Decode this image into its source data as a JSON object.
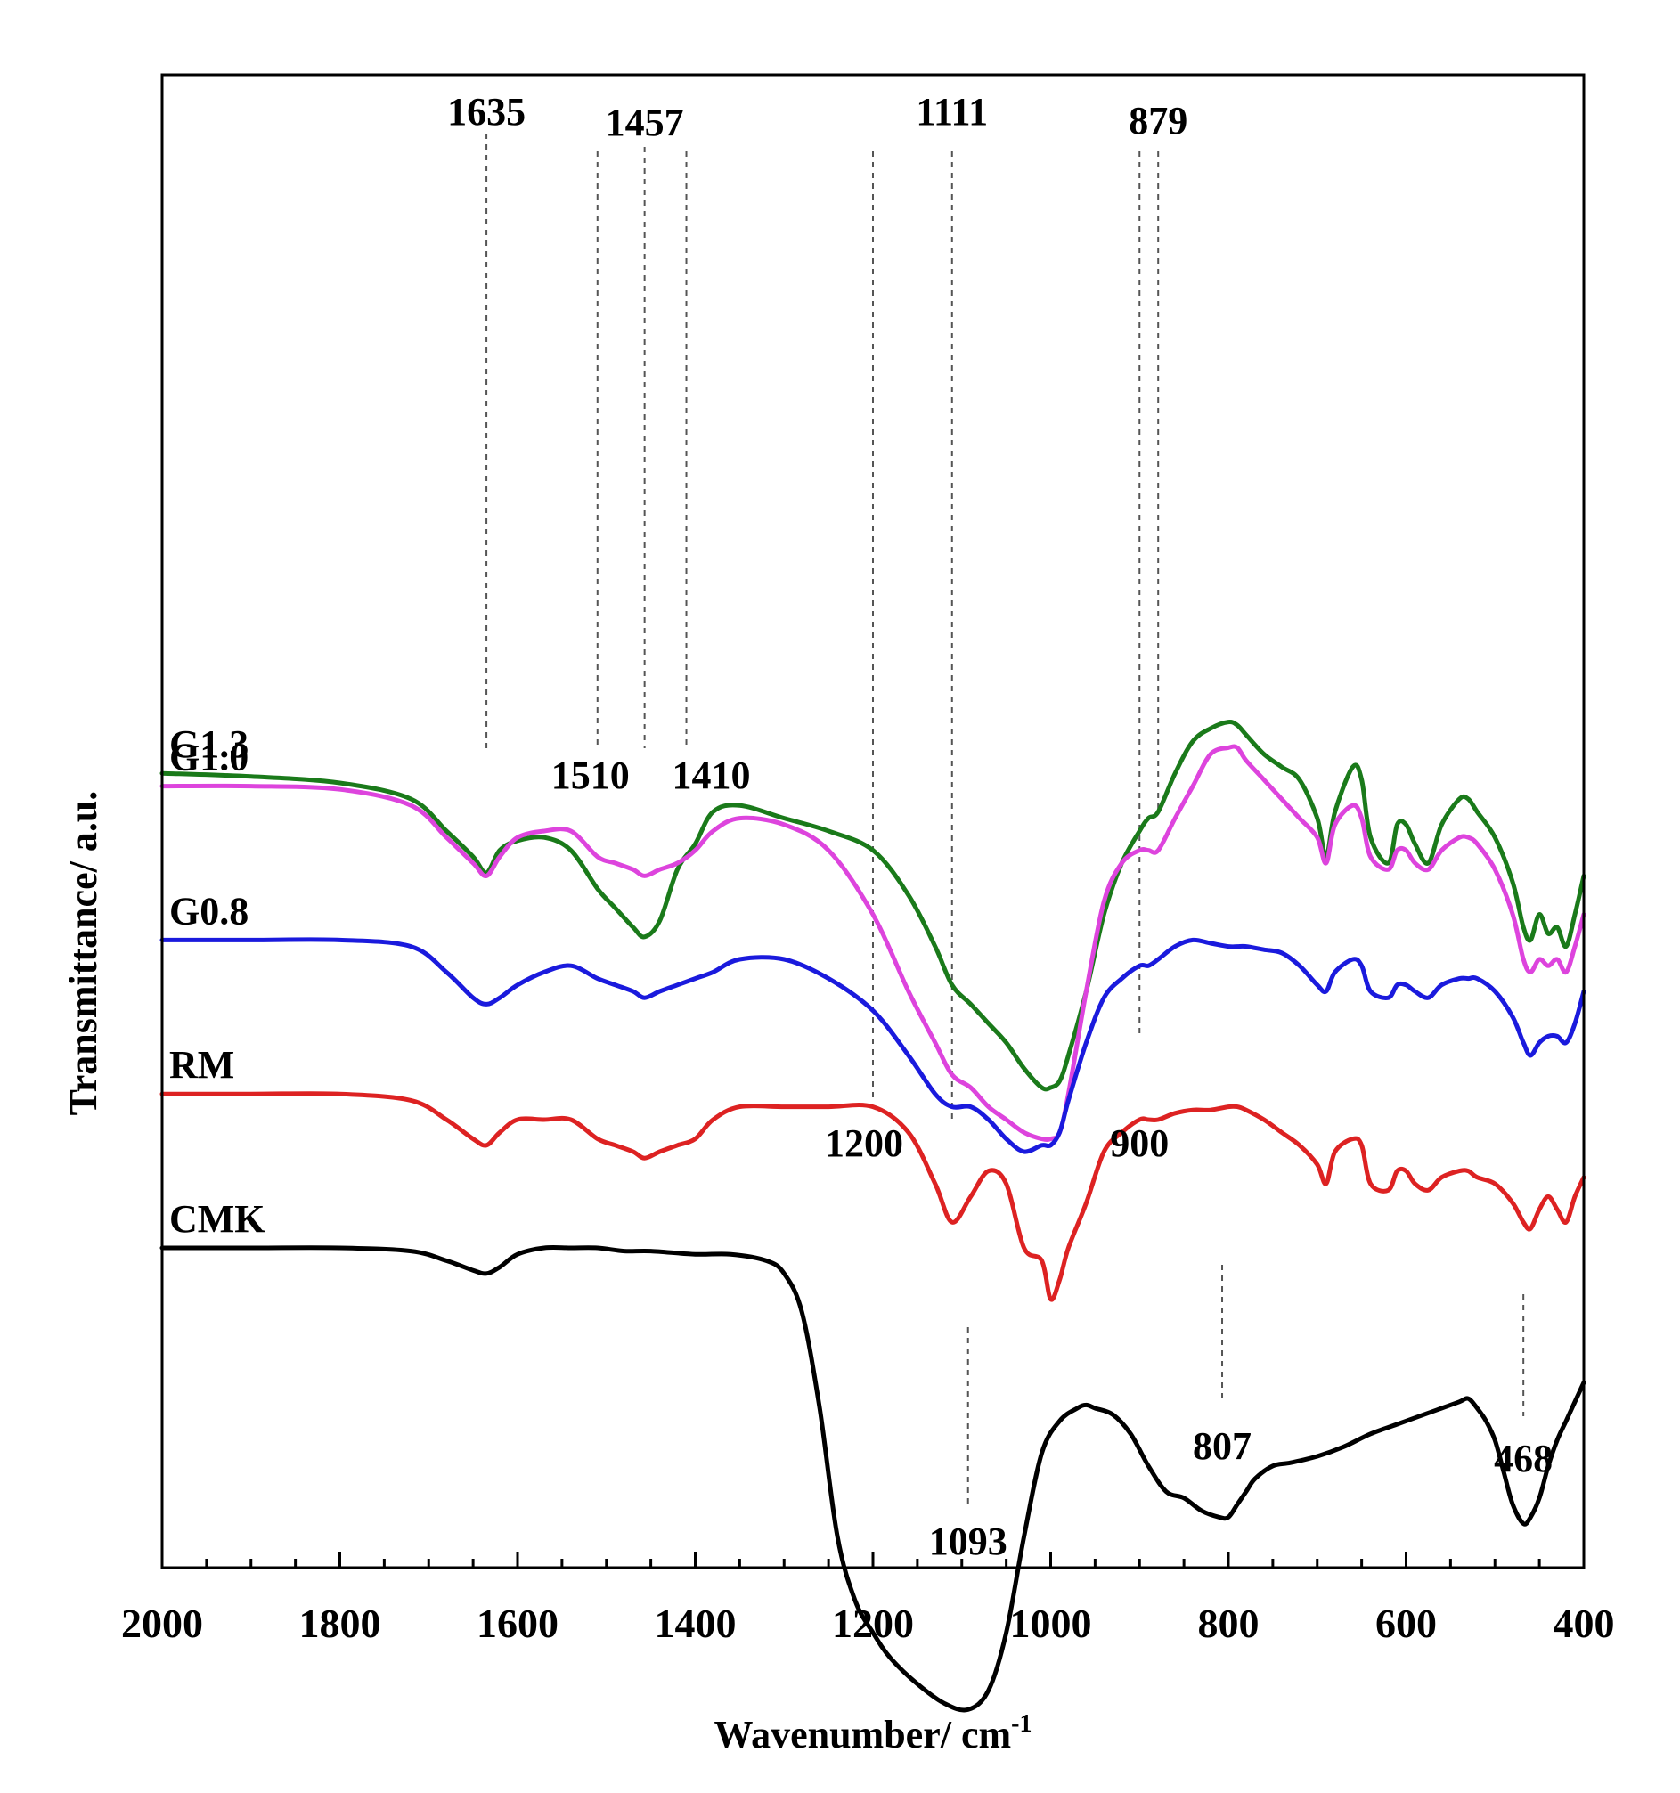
{
  "chart_data": {
    "type": "line",
    "title": "",
    "xlabel": "Wavenumber/ cm",
    "xlabel_sup": "-1",
    "ylabel": "Transmittance/ a.u.",
    "xlim": [
      2000,
      400
    ],
    "x_ticks": [
      2000,
      1800,
      1600,
      1400,
      1200,
      1000,
      800,
      600,
      400
    ],
    "y_units": "a.u. (stacked, offset)",
    "grid": false,
    "series": [
      {
        "name": "G1.3",
        "color": "#1a7a1a",
        "x": [
          2000,
          1900,
          1800,
          1720,
          1680,
          1650,
          1635,
          1620,
          1600,
          1570,
          1540,
          1510,
          1490,
          1470,
          1457,
          1440,
          1420,
          1400,
          1380,
          1350,
          1300,
          1250,
          1200,
          1160,
          1130,
          1111,
          1090,
          1070,
          1050,
          1030,
          1010,
          1000,
          990,
          980,
          960,
          940,
          920,
          900,
          890,
          879,
          860,
          840,
          820,
          800,
          790,
          780,
          760,
          740,
          720,
          700,
          690,
          680,
          660,
          650,
          640,
          620,
          610,
          600,
          590,
          575,
          560,
          540,
          530,
          520,
          500,
          480,
          468,
          460,
          450,
          440,
          430,
          420,
          410,
          400
        ],
        "values": [
          94,
          93.5,
          92.5,
          90,
          85,
          81,
          78.5,
          82,
          83.5,
          84,
          82,
          76,
          73,
          70,
          68.5,
          71,
          79,
          83,
          88,
          89,
          87,
          85,
          82,
          75,
          67,
          61,
          58,
          55,
          52,
          48,
          45,
          45,
          46,
          50,
          60,
          72,
          80,
          85,
          87,
          88,
          94,
          99,
          101,
          102,
          101.5,
          100,
          97,
          95,
          93,
          87,
          81,
          88,
          95,
          93,
          84,
          80,
          86,
          86,
          83,
          80,
          86,
          90,
          90,
          88,
          84,
          77,
          70,
          68,
          72,
          69,
          70,
          67,
          72,
          78
        ],
        "label_value": "G1.3"
      },
      {
        "name": "G1.0",
        "color": "#dd44dd",
        "x": [
          2000,
          1900,
          1800,
          1720,
          1680,
          1650,
          1635,
          1620,
          1600,
          1570,
          1540,
          1510,
          1490,
          1470,
          1457,
          1440,
          1420,
          1400,
          1380,
          1350,
          1300,
          1250,
          1200,
          1160,
          1130,
          1111,
          1090,
          1070,
          1050,
          1030,
          1010,
          1000,
          990,
          980,
          960,
          940,
          920,
          900,
          890,
          879,
          860,
          840,
          820,
          800,
          790,
          780,
          760,
          740,
          720,
          700,
          690,
          680,
          660,
          650,
          640,
          620,
          610,
          600,
          590,
          575,
          560,
          540,
          530,
          520,
          500,
          480,
          468,
          460,
          450,
          440,
          430,
          420,
          410,
          400
        ],
        "values": [
          92,
          92,
          91.5,
          89,
          84,
          80,
          78,
          81,
          84,
          85,
          85,
          81,
          80,
          79,
          78,
          79,
          80,
          82,
          85,
          87,
          86,
          82,
          72,
          60,
          52,
          47,
          45,
          42,
          40,
          38,
          37,
          37,
          38,
          44,
          60,
          74,
          80,
          82,
          82,
          82,
          87,
          92,
          97,
          98,
          98,
          96,
          93,
          90,
          87,
          84,
          80,
          86,
          89,
          87,
          81,
          79,
          82,
          82,
          80,
          79,
          82,
          84,
          84,
          83,
          79,
          72,
          65,
          63,
          65,
          64,
          65,
          63,
          67,
          72
        ],
        "label_value": "G1.0"
      },
      {
        "name": "G0.8",
        "color": "#1a1add",
        "x": [
          2000,
          1900,
          1800,
          1720,
          1680,
          1650,
          1635,
          1620,
          1600,
          1570,
          1540,
          1510,
          1490,
          1470,
          1457,
          1440,
          1420,
          1400,
          1380,
          1350,
          1300,
          1250,
          1200,
          1160,
          1130,
          1111,
          1090,
          1070,
          1050,
          1030,
          1010,
          1000,
          990,
          980,
          960,
          940,
          920,
          900,
          890,
          879,
          860,
          840,
          820,
          800,
          790,
          780,
          760,
          740,
          720,
          700,
          690,
          680,
          660,
          650,
          640,
          620,
          610,
          600,
          590,
          575,
          560,
          540,
          530,
          520,
          500,
          480,
          468,
          460,
          450,
          440,
          430,
          420,
          410,
          400
        ],
        "values": [
          68,
          68,
          68,
          67,
          63,
          59,
          58,
          59,
          61,
          63,
          64,
          62,
          61,
          60,
          59,
          60,
          61,
          62,
          63,
          65,
          65,
          62,
          57,
          50,
          44,
          42,
          42,
          40,
          37,
          35,
          36,
          36,
          38,
          43,
          52,
          59,
          62,
          64,
          64,
          65,
          67,
          68,
          67.5,
          67,
          67,
          67,
          66.5,
          66,
          64,
          61,
          60,
          63,
          65,
          64,
          60,
          59,
          61,
          61,
          60,
          59,
          61,
          62,
          62,
          62,
          60,
          56,
          52,
          50,
          52,
          53,
          53,
          52,
          55,
          60
        ],
        "label_value": "G0.8"
      },
      {
        "name": "RM",
        "color": "#dd2222",
        "x": [
          2000,
          1900,
          1800,
          1720,
          1680,
          1650,
          1635,
          1620,
          1600,
          1570,
          1540,
          1510,
          1490,
          1470,
          1457,
          1440,
          1420,
          1400,
          1380,
          1350,
          1300,
          1250,
          1200,
          1160,
          1130,
          1111,
          1090,
          1070,
          1050,
          1030,
          1010,
          1000,
          990,
          980,
          960,
          940,
          920,
          900,
          890,
          879,
          860,
          840,
          820,
          800,
          790,
          780,
          760,
          740,
          720,
          700,
          690,
          680,
          660,
          650,
          640,
          620,
          610,
          600,
          590,
          575,
          560,
          540,
          530,
          520,
          500,
          480,
          468,
          460,
          450,
          440,
          430,
          420,
          410,
          400
        ],
        "values": [
          44,
          44,
          44,
          43,
          40,
          37,
          36,
          38,
          40,
          40,
          40,
          37,
          36,
          35,
          34,
          35,
          36,
          37,
          40,
          42,
          42,
          42,
          42,
          38,
          30,
          24,
          28,
          32,
          30,
          20,
          18,
          12,
          15,
          20,
          27,
          35,
          38,
          40,
          40,
          40,
          41,
          41.5,
          41.5,
          42,
          42,
          41.5,
          40,
          38,
          36,
          33,
          30,
          35,
          37,
          36,
          30,
          29,
          32,
          32,
          30,
          29,
          31,
          32,
          32,
          31,
          30,
          27,
          24,
          23,
          26,
          28,
          26,
          24,
          28,
          31
        ],
        "label_value": "RM"
      },
      {
        "name": "CMK",
        "color": "#000000",
        "x": [
          2000,
          1900,
          1800,
          1720,
          1680,
          1650,
          1635,
          1620,
          1600,
          1570,
          1540,
          1510,
          1480,
          1450,
          1400,
          1360,
          1320,
          1300,
          1280,
          1260,
          1240,
          1220,
          1200,
          1180,
          1150,
          1120,
          1093,
          1070,
          1050,
          1030,
          1010,
          990,
          970,
          960,
          950,
          930,
          910,
          890,
          870,
          850,
          830,
          810,
          800,
          790,
          780,
          770,
          750,
          730,
          700,
          670,
          640,
          610,
          580,
          560,
          540,
          530,
          520,
          510,
          500,
          490,
          480,
          468,
          460,
          450,
          440,
          430,
          420,
          410,
          400
        ],
        "values": [
          20,
          20,
          20,
          19.5,
          18,
          16.5,
          16,
          17,
          19,
          20,
          20,
          20,
          19.5,
          19.5,
          19,
          19,
          18,
          16,
          10,
          -5,
          -25,
          -35,
          -40,
          -44,
          -48,
          -51,
          -52,
          -49,
          -40,
          -25,
          -12,
          -7,
          -5,
          -4.5,
          -5,
          -6,
          -9,
          -14,
          -18,
          -19,
          -21,
          -22,
          -22,
          -20,
          -18,
          -16,
          -14,
          -13.5,
          -12.5,
          -11,
          -9,
          -7.5,
          -6,
          -5,
          -4,
          -3.5,
          -5,
          -7,
          -10,
          -15,
          -20,
          -23,
          -22,
          -19,
          -14,
          -10,
          -7,
          -4,
          -1
        ],
        "label_value": "CMK"
      }
    ],
    "annotations": [
      {
        "label": "1635",
        "x": 1635
      },
      {
        "label": "1457",
        "x": 1457
      },
      {
        "label": "1111",
        "x": 1111
      },
      {
        "label": "879",
        "x": 879
      },
      {
        "label": "1510",
        "x": 1510
      },
      {
        "label": "1410",
        "x": 1410
      },
      {
        "label": "1200",
        "x": 1200
      },
      {
        "label": "900",
        "x": 900
      },
      {
        "label": "1093",
        "x": 1093
      },
      {
        "label": "807",
        "x": 807
      },
      {
        "label": "468",
        "x": 468
      }
    ]
  }
}
